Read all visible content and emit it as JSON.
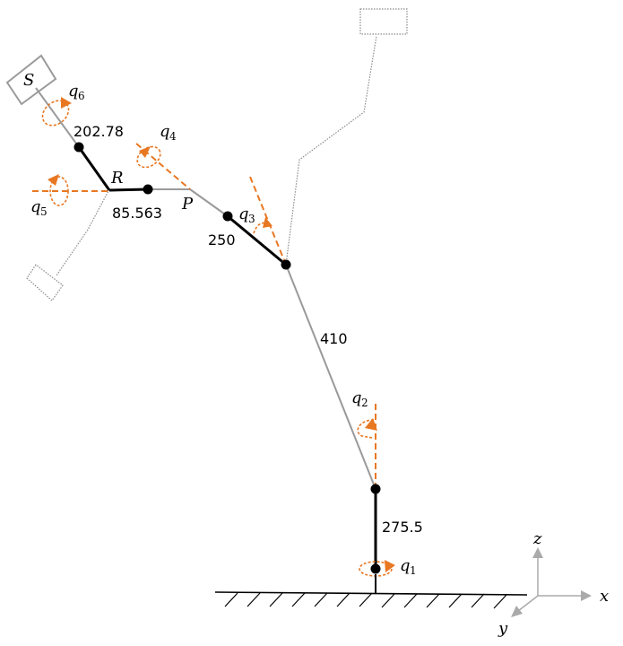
{
  "links": {
    "l1": "275.5",
    "l2": "410",
    "l3": "250",
    "l4": "85.563",
    "l5": "202.78"
  },
  "joints": {
    "q1": {
      "base": "q",
      "index": "1"
    },
    "q2": {
      "base": "q",
      "index": "2"
    },
    "q3": {
      "base": "q",
      "index": "3"
    },
    "q4": {
      "base": "q",
      "index": "4"
    },
    "q5": {
      "base": "q",
      "index": "5"
    },
    "q6": {
      "base": "q",
      "index": "6"
    }
  },
  "points": {
    "P": "P",
    "R": "R",
    "S": "S"
  },
  "frame": {
    "x": "x",
    "y": "y",
    "z": "z"
  },
  "colors": {
    "accent": "#e87722",
    "link_grey": "#9a9a9a",
    "link_black": "#000000"
  }
}
